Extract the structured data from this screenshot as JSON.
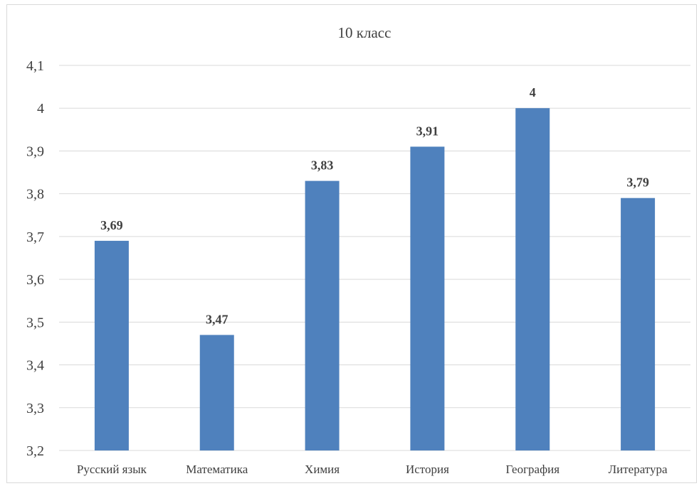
{
  "chart_data": {
    "type": "bar",
    "title": "10 класс",
    "categories": [
      "Русский язык",
      "Математика",
      "Химия",
      "История",
      "География",
      "Литература"
    ],
    "series": [
      {
        "values": [
          3.69,
          3.47,
          3.83,
          3.91,
          4,
          3.79
        ]
      }
    ],
    "data_labels": [
      "3,69",
      "3,47",
      "3,83",
      "3,91",
      "4",
      "3,79"
    ],
    "yticks": [
      3.2,
      3.3,
      3.4,
      3.5,
      3.6,
      3.7,
      3.8,
      3.9,
      4,
      4.1
    ],
    "ytick_labels": [
      "3,2",
      "3,3",
      "3,4",
      "3,5",
      "3,6",
      "3,7",
      "3,8",
      "3,9",
      "4",
      "4,1"
    ],
    "ylim": [
      3.2,
      4.1
    ],
    "grid": true,
    "bar_color": "#4f81bd"
  }
}
